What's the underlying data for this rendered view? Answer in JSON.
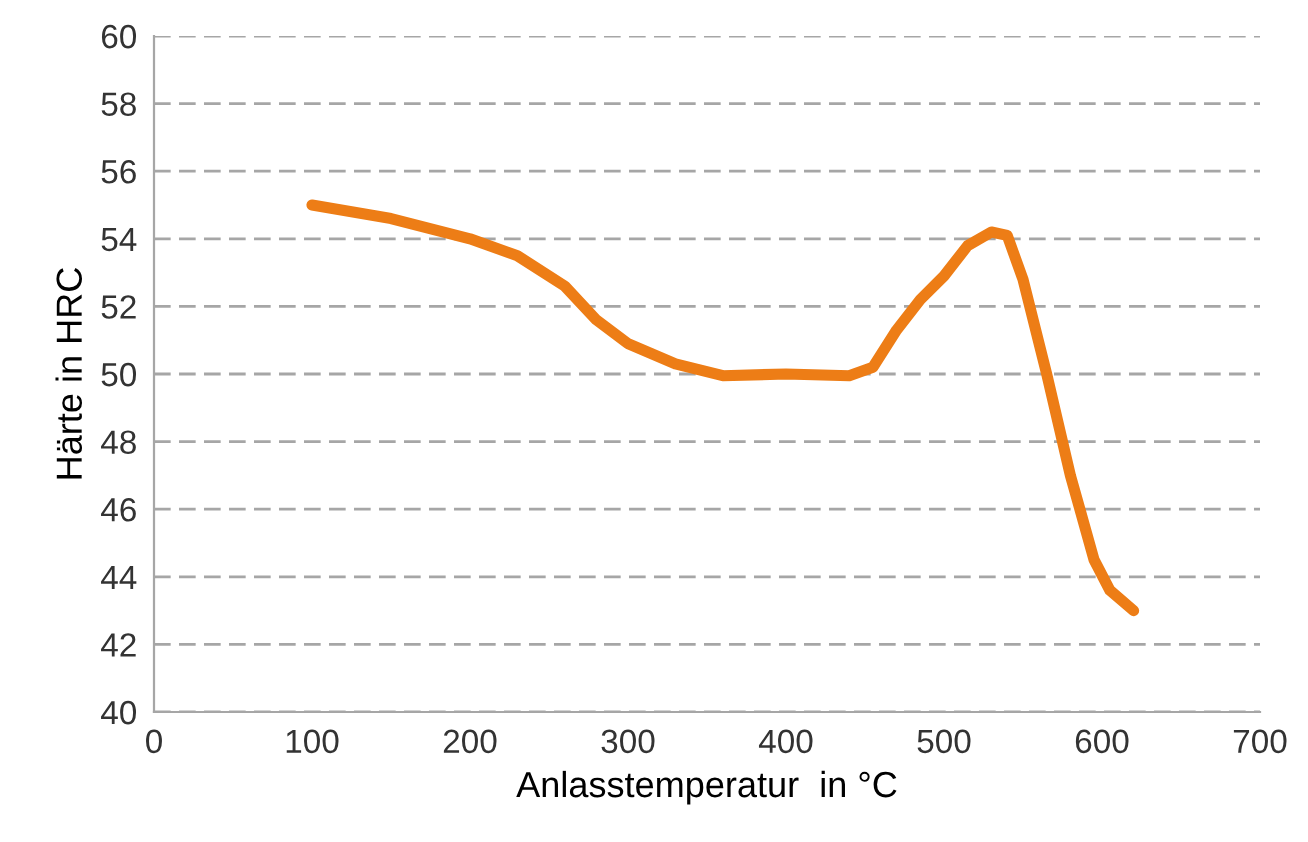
{
  "chart_data": {
    "type": "line",
    "xlabel": "Anlasstemperatur  in °C",
    "ylabel": "Härte in HRC",
    "x": [
      100,
      150,
      200,
      230,
      260,
      280,
      300,
      330,
      360,
      400,
      440,
      455,
      470,
      485,
      500,
      515,
      530,
      540,
      550,
      565,
      580,
      595,
      605,
      620
    ],
    "series": [
      {
        "color": "#ed7d16",
        "values": [
          55.0,
          54.6,
          54.0,
          53.5,
          52.6,
          51.6,
          50.9,
          50.3,
          49.95,
          50.0,
          49.95,
          50.2,
          51.3,
          52.2,
          52.9,
          53.8,
          54.2,
          54.1,
          52.8,
          50.0,
          47.0,
          44.5,
          43.6,
          43.0
        ]
      }
    ],
    "xlim": [
      0,
      700
    ],
    "xticks": [
      0,
      100,
      200,
      300,
      400,
      500,
      600,
      700
    ],
    "ylim": [
      40,
      60
    ],
    "yticks": [
      40,
      42,
      44,
      46,
      48,
      50,
      52,
      54,
      56,
      58,
      60
    ],
    "grid": "y",
    "legend": false,
    "marker": "none",
    "line_style": "solid"
  }
}
